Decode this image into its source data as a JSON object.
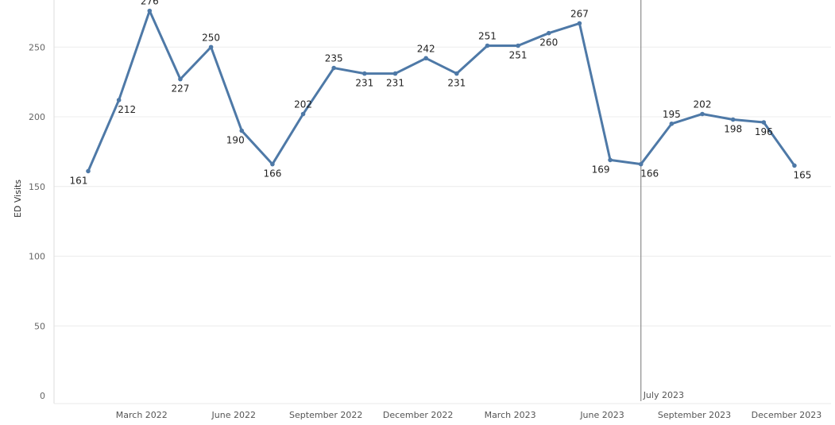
{
  "chart_data": {
    "type": "line",
    "ylabel": "ED Visits",
    "xlabel": "",
    "ylim": [
      0,
      276
    ],
    "yticks": [
      0,
      50,
      100,
      150,
      200,
      250
    ],
    "x": [
      "2022-01",
      "2022-02",
      "2022-03",
      "2022-04",
      "2022-05",
      "2022-06",
      "2022-07",
      "2022-08",
      "2022-09",
      "2022-10",
      "2022-11",
      "2022-12",
      "2023-01",
      "2023-02",
      "2023-03",
      "2023-04",
      "2023-05",
      "2023-06",
      "2023-07",
      "2023-08",
      "2023-09",
      "2023-10",
      "2023-11",
      "2023-12"
    ],
    "values": [
      161,
      212,
      276,
      227,
      250,
      190,
      166,
      202,
      235,
      231,
      231,
      242,
      231,
      251,
      251,
      260,
      267,
      169,
      166,
      195,
      202,
      198,
      196,
      165
    ],
    "data_labels": [
      {
        "i": 0,
        "text": "161"
      },
      {
        "i": 1,
        "text": "212"
      },
      {
        "i": 2,
        "text": "276"
      },
      {
        "i": 3,
        "text": "227"
      },
      {
        "i": 4,
        "text": "250"
      },
      {
        "i": 5,
        "text": "190"
      },
      {
        "i": 6,
        "text": "166"
      },
      {
        "i": 7,
        "text": "202"
      },
      {
        "i": 8,
        "text": "235"
      },
      {
        "i": 9,
        "text": "231"
      },
      {
        "i": 10,
        "text": "231"
      },
      {
        "i": 11,
        "text": "242"
      },
      {
        "i": 12,
        "text": "231"
      },
      {
        "i": 13,
        "text": "251"
      },
      {
        "i": 14,
        "text": "251"
      },
      {
        "i": 15,
        "text": "260"
      },
      {
        "i": 16,
        "text": "267"
      },
      {
        "i": 17,
        "text": "169"
      },
      {
        "i": 18,
        "text": "166"
      },
      {
        "i": 19,
        "text": "195"
      },
      {
        "i": 20,
        "text": "202"
      },
      {
        "i": 21,
        "text": "198"
      },
      {
        "i": 22,
        "text": "196"
      },
      {
        "i": 23,
        "text": "165"
      }
    ],
    "xtick_labels": [
      {
        "i": 2,
        "text": "March 2022"
      },
      {
        "i": 5,
        "text": "June 2022"
      },
      {
        "i": 8,
        "text": "September 2022"
      },
      {
        "i": 11,
        "text": "December 2022"
      },
      {
        "i": 14,
        "text": "March 2023"
      },
      {
        "i": 17,
        "text": "June 2023"
      },
      {
        "i": 20,
        "text": "September 2023"
      },
      {
        "i": 23,
        "text": "December 2023"
      }
    ],
    "reference_line": {
      "i": 18,
      "label": "July 2023"
    },
    "grid": true,
    "line_color": "#4e79a7",
    "grid_color": "#ececec",
    "reference_color": "#8c8c8c"
  }
}
